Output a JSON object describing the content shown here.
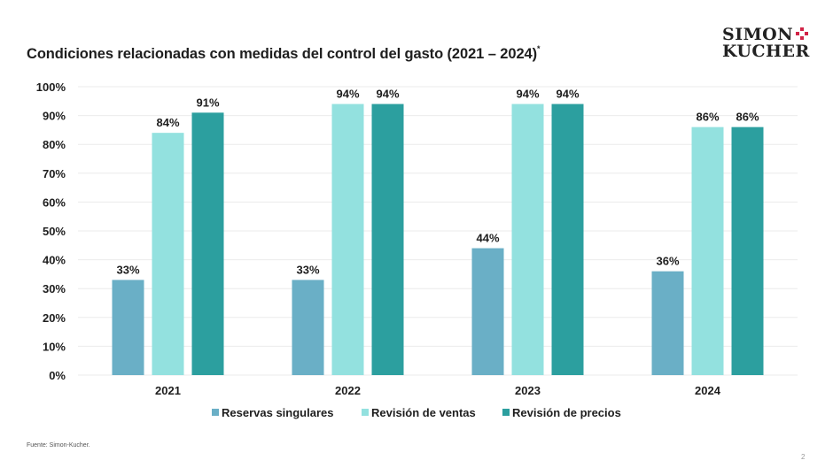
{
  "slide": {
    "title": "Condiciones relacionadas con medidas del control del gasto (2021 – 2024)",
    "title_marker": "*",
    "logo_line1": "SIMON",
    "logo_line2": "KUCHER",
    "source": "Fuente: Simon-Kucher.",
    "page_number": "2"
  },
  "chart_data": {
    "type": "bar",
    "title": "Condiciones relacionadas con medidas del control del gasto (2021 – 2024)*",
    "xlabel": "",
    "ylabel": "",
    "ylim": [
      0,
      100
    ],
    "yticks": [
      0,
      10,
      20,
      30,
      40,
      50,
      60,
      70,
      80,
      90,
      100
    ],
    "ytick_labels": [
      "0%",
      "10%",
      "20%",
      "30%",
      "40%",
      "50%",
      "60%",
      "70%",
      "80%",
      "90%",
      "100%"
    ],
    "grid": true,
    "legend_position": "bottom",
    "categories": [
      "2021",
      "2022",
      "2023",
      "2024"
    ],
    "series": [
      {
        "name": "Reservas singulares",
        "color": "#6aafc6",
        "values": [
          33,
          33,
          44,
          36
        ],
        "labels": [
          "33%",
          "33%",
          "44%",
          "36%"
        ]
      },
      {
        "name": "Revisión de ventas",
        "color": "#93e1df",
        "values": [
          84,
          94,
          94,
          86
        ],
        "labels": [
          "84%",
          "94%",
          "94%",
          "86%"
        ]
      },
      {
        "name": "Revisión de precios",
        "color": "#2c9f9f",
        "values": [
          91,
          94,
          94,
          86
        ],
        "labels": [
          "91%",
          "94%",
          "94%",
          "86%"
        ]
      }
    ]
  }
}
